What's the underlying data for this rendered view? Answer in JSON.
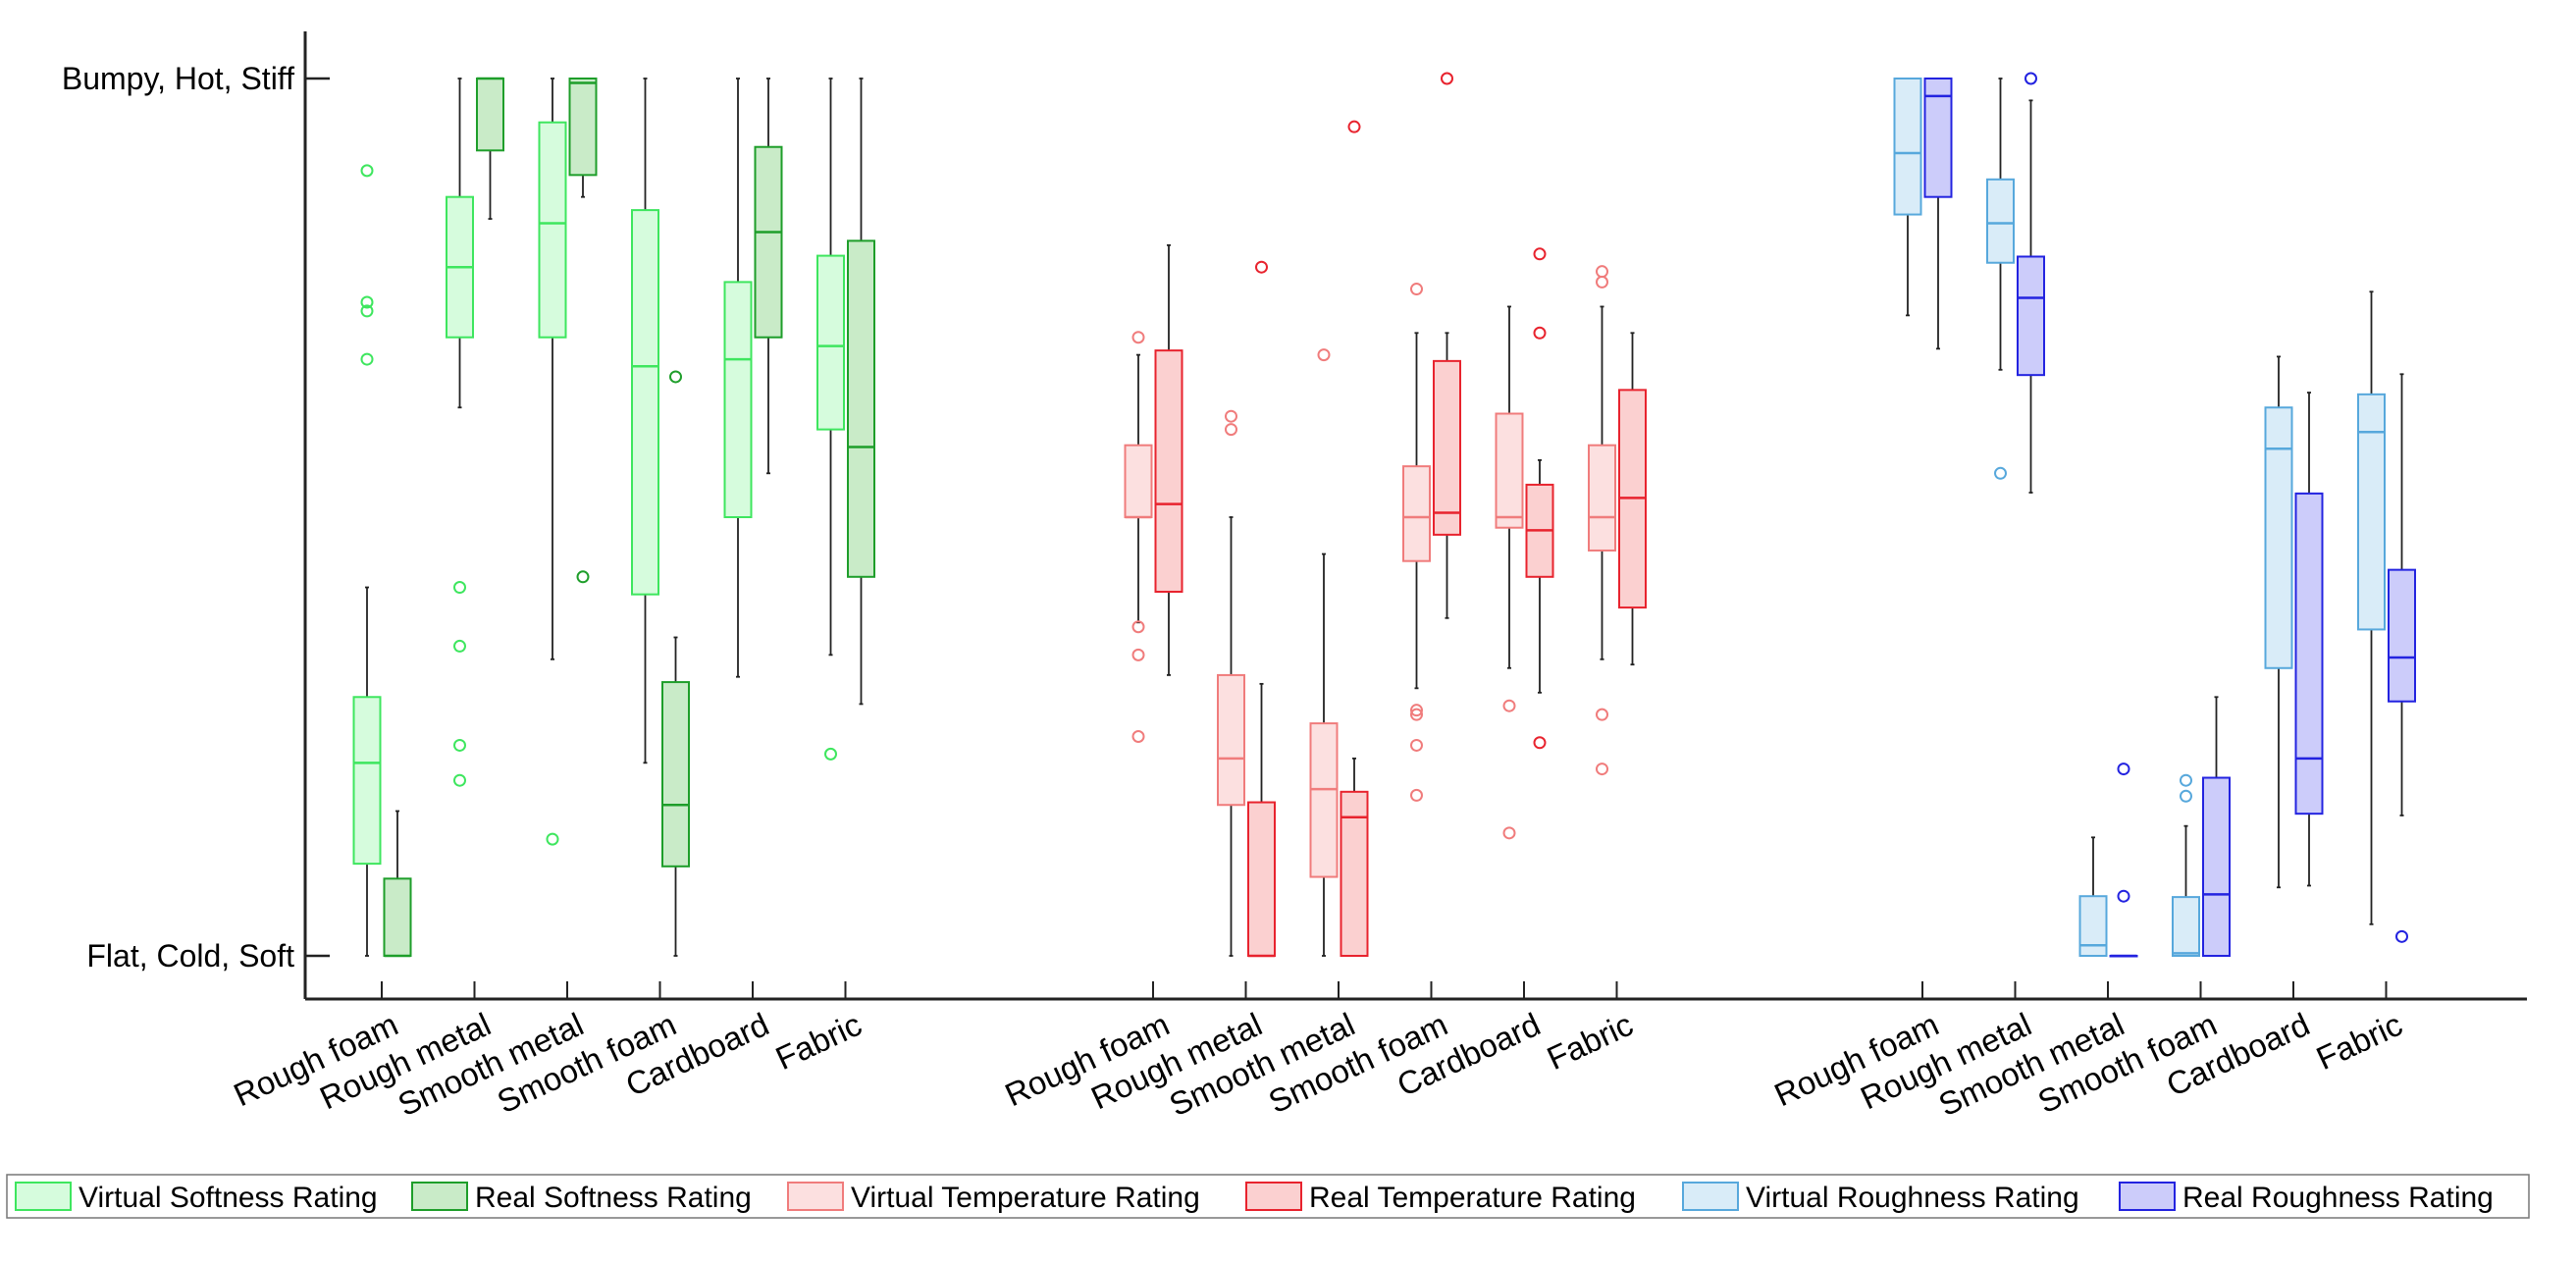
{
  "chart_data": {
    "type": "boxplot",
    "title": "",
    "xlabel": "",
    "ylabel": "",
    "ylim": [
      0,
      1
    ],
    "y_tick_values": [
      0,
      1
    ],
    "y_tick_labels": [
      "Flat, Cold, Soft",
      "Bumpy, Hot, Stiff"
    ],
    "groups": [
      {
        "name": "Softness",
        "categories": [
          "Rough foam",
          "Rough metal",
          "Smooth metal",
          "Smooth foam",
          "Cardboard",
          "Fabric"
        ],
        "series": [
          {
            "name": "Virtual Softness Rating",
            "color": "#3ee65e",
            "fill": "#d6fcdd",
            "boxes": [
              {
                "whisker_low": 0.0,
                "q1": 0.105,
                "median": 0.22,
                "q3": 0.295,
                "whisker_high": 0.42,
                "outliers": [
                  0.68,
                  0.735,
                  0.745,
                  0.895
                ]
              },
              {
                "whisker_low": 0.625,
                "q1": 0.705,
                "median": 0.785,
                "q3": 0.865,
                "whisker_high": 1.0,
                "outliers": [
                  0.42,
                  0.353,
                  0.24,
                  0.2
                ]
              },
              {
                "whisker_low": 0.338,
                "q1": 0.705,
                "median": 0.835,
                "q3": 0.95,
                "whisker_high": 1.0,
                "outliers": [
                  0.133
                ]
              },
              {
                "whisker_low": 0.22,
                "q1": 0.412,
                "median": 0.672,
                "q3": 0.85,
                "whisker_high": 1.0,
                "outliers": []
              },
              {
                "whisker_low": 0.318,
                "q1": 0.5,
                "median": 0.68,
                "q3": 0.768,
                "whisker_high": 1.0,
                "outliers": []
              },
              {
                "whisker_low": 0.343,
                "q1": 0.6,
                "median": 0.695,
                "q3": 0.798,
                "whisker_high": 1.0,
                "outliers": [
                  0.23
                ]
              }
            ]
          },
          {
            "name": "Real Softness Rating",
            "color": "#1e9e2a",
            "fill": "#c9ebc8",
            "boxes": [
              {
                "whisker_low": 0.0,
                "q1": 0.0,
                "median": 0.0,
                "q3": 0.088,
                "whisker_high": 0.165,
                "outliers": []
              },
              {
                "whisker_low": 0.84,
                "q1": 0.918,
                "median": 1.0,
                "q3": 1.0,
                "whisker_high": 1.0,
                "outliers": []
              },
              {
                "whisker_low": 0.865,
                "q1": 0.89,
                "median": 0.995,
                "q3": 1.0,
                "whisker_high": 1.0,
                "outliers": [
                  0.432
                ]
              },
              {
                "whisker_low": 0.0,
                "q1": 0.102,
                "median": 0.172,
                "q3": 0.312,
                "whisker_high": 0.363,
                "outliers": [
                  0.66
                ]
              },
              {
                "whisker_low": 0.55,
                "q1": 0.705,
                "median": 0.825,
                "q3": 0.922,
                "whisker_high": 1.0,
                "outliers": []
              },
              {
                "whisker_low": 0.287,
                "q1": 0.432,
                "median": 0.58,
                "q3": 0.815,
                "whisker_high": 1.0,
                "outliers": []
              }
            ]
          }
        ]
      },
      {
        "name": "Temperature",
        "categories": [
          "Rough foam",
          "Rough metal",
          "Smooth metal",
          "Smooth foam",
          "Cardboard",
          "Fabric"
        ],
        "series": [
          {
            "name": "Virtual Temperature Rating",
            "color": "#f07c7c",
            "fill": "#fce0e0",
            "boxes": [
              {
                "whisker_low": 0.38,
                "q1": 0.5,
                "median": 0.5,
                "q3": 0.582,
                "whisker_high": 0.685,
                "outliers": [
                  0.705,
                  0.375,
                  0.343,
                  0.25
                ]
              },
              {
                "whisker_low": 0.0,
                "q1": 0.172,
                "median": 0.225,
                "q3": 0.32,
                "whisker_high": 0.5,
                "outliers": [
                  0.615,
                  0.6
                ]
              },
              {
                "whisker_low": 0.0,
                "q1": 0.09,
                "median": 0.19,
                "q3": 0.265,
                "whisker_high": 0.458,
                "outliers": [
                  0.685
                ]
              },
              {
                "whisker_low": 0.305,
                "q1": 0.45,
                "median": 0.5,
                "q3": 0.558,
                "whisker_high": 0.71,
                "outliers": [
                  0.76,
                  0.28,
                  0.275,
                  0.24,
                  0.183
                ]
              },
              {
                "whisker_low": 0.328,
                "q1": 0.488,
                "median": 0.5,
                "q3": 0.618,
                "whisker_high": 0.74,
                "outliers": [
                  0.285,
                  0.14
                ]
              },
              {
                "whisker_low": 0.338,
                "q1": 0.462,
                "median": 0.5,
                "q3": 0.582,
                "whisker_high": 0.74,
                "outliers": [
                  0.78,
                  0.768,
                  0.275,
                  0.213
                ]
              }
            ]
          },
          {
            "name": "Real Temperature Rating",
            "color": "#e8232e",
            "fill": "#fbd0d0",
            "boxes": [
              {
                "whisker_low": 0.32,
                "q1": 0.415,
                "median": 0.515,
                "q3": 0.69,
                "whisker_high": 0.81,
                "outliers": []
              },
              {
                "whisker_low": 0.0,
                "q1": 0.0,
                "median": 0.0,
                "q3": 0.175,
                "whisker_high": 0.31,
                "outliers": [
                  0.785
                ]
              },
              {
                "whisker_low": 0.0,
                "q1": 0.0,
                "median": 0.158,
                "q3": 0.187,
                "whisker_high": 0.225,
                "outliers": [
                  0.945
                ]
              },
              {
                "whisker_low": 0.385,
                "q1": 0.48,
                "median": 0.505,
                "q3": 0.678,
                "whisker_high": 0.71,
                "outliers": [
                  1.0
                ]
              },
              {
                "whisker_low": 0.3,
                "q1": 0.432,
                "median": 0.485,
                "q3": 0.537,
                "whisker_high": 0.565,
                "outliers": [
                  0.8,
                  0.71,
                  0.243
                ]
              },
              {
                "whisker_low": 0.332,
                "q1": 0.397,
                "median": 0.522,
                "q3": 0.645,
                "whisker_high": 0.71,
                "outliers": []
              }
            ]
          }
        ]
      },
      {
        "name": "Roughness",
        "categories": [
          "Rough foam",
          "Rough metal",
          "Smooth metal",
          "Smooth foam",
          "Cardboard",
          "Fabric"
        ],
        "series": [
          {
            "name": "Virtual Roughness Rating",
            "color": "#57a8dc",
            "fill": "#d9ecf8",
            "boxes": [
              {
                "whisker_low": 0.73,
                "q1": 0.845,
                "median": 0.915,
                "q3": 1.0,
                "whisker_high": 1.0,
                "outliers": []
              },
              {
                "whisker_low": 0.668,
                "q1": 0.79,
                "median": 0.835,
                "q3": 0.885,
                "whisker_high": 1.0,
                "outliers": [
                  0.55
                ]
              },
              {
                "whisker_low": 0.0,
                "q1": 0.0,
                "median": 0.012,
                "q3": 0.068,
                "whisker_high": 0.135,
                "outliers": []
              },
              {
                "whisker_low": 0.0,
                "q1": 0.0,
                "median": 0.003,
                "q3": 0.067,
                "whisker_high": 0.148,
                "outliers": [
                  0.2,
                  0.182
                ]
              },
              {
                "whisker_low": 0.078,
                "q1": 0.328,
                "median": 0.578,
                "q3": 0.625,
                "whisker_high": 0.683,
                "outliers": []
              },
              {
                "whisker_low": 0.036,
                "q1": 0.372,
                "median": 0.597,
                "q3": 0.64,
                "whisker_high": 0.757,
                "outliers": []
              }
            ]
          },
          {
            "name": "Real Roughness Rating",
            "color": "#2323e0",
            "fill": "#ccccfa",
            "boxes": [
              {
                "whisker_low": 0.692,
                "q1": 0.865,
                "median": 0.98,
                "q3": 1.0,
                "whisker_high": 1.0,
                "outliers": []
              },
              {
                "whisker_low": 0.528,
                "q1": 0.662,
                "median": 0.75,
                "q3": 0.797,
                "whisker_high": 0.975,
                "outliers": [
                  1.0
                ]
              },
              {
                "whisker_low": 0.0,
                "q1": 0.0,
                "median": 0.0,
                "q3": 0.0,
                "whisker_high": 0.0,
                "outliers": [
                  0.213,
                  0.068
                ]
              },
              {
                "whisker_low": 0.0,
                "q1": 0.0,
                "median": 0.07,
                "q3": 0.203,
                "whisker_high": 0.295,
                "outliers": []
              },
              {
                "whisker_low": 0.08,
                "q1": 0.162,
                "median": 0.225,
                "q3": 0.527,
                "whisker_high": 0.642,
                "outliers": []
              },
              {
                "whisker_low": 0.16,
                "q1": 0.29,
                "median": 0.34,
                "q3": 0.44,
                "whisker_high": 0.663,
                "outliers": [
                  0.022
                ]
              }
            ]
          }
        ]
      }
    ],
    "legend": {
      "placement": "bottom",
      "entries": [
        {
          "label": "Virtual Softness Rating",
          "color": "#3ee65e",
          "fill": "#d6fcdd"
        },
        {
          "label": "Real Softness Rating",
          "color": "#1e9e2a",
          "fill": "#c9ebc8"
        },
        {
          "label": "Virtual Temperature Rating",
          "color": "#f07c7c",
          "fill": "#fce0e0"
        },
        {
          "label": "Real Temperature Rating",
          "color": "#e8232e",
          "fill": "#fbd0d0"
        },
        {
          "label": "Virtual Roughness Rating",
          "color": "#57a8dc",
          "fill": "#d9ecf8"
        },
        {
          "label": "Real Roughness Rating",
          "color": "#2323e0",
          "fill": "#ccccfa"
        }
      ]
    }
  }
}
